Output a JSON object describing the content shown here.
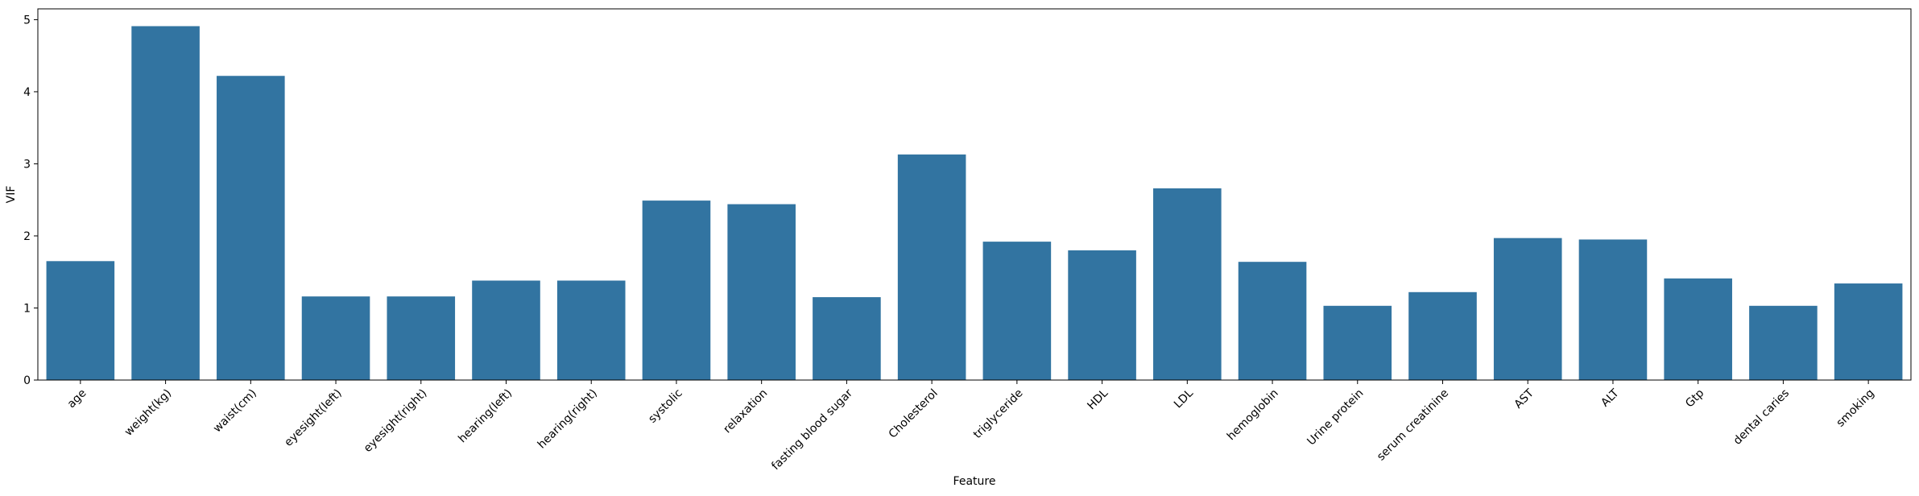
{
  "chart_data": {
    "type": "bar",
    "xlabel": "Feature",
    "ylabel": "VIF",
    "ylim": [
      0,
      5.15
    ],
    "yticks": [
      0,
      1,
      2,
      3,
      4,
      5
    ],
    "bar_color": "#3274a1",
    "grid": false,
    "categories": [
      "age",
      "weight(kg)",
      "waist(cm)",
      "eyesight(left)",
      "eyesight(right)",
      "hearing(left)",
      "hearing(right)",
      "systolic",
      "relaxation",
      "fasting blood sugar",
      "Cholesterol",
      "triglyceride",
      "HDL",
      "LDL",
      "hemoglobin",
      "Urine protein",
      "serum creatinine",
      "AST",
      "ALT",
      "Gtp",
      "dental caries",
      "smoking"
    ],
    "values": [
      1.65,
      4.91,
      4.22,
      1.16,
      1.16,
      1.38,
      1.38,
      2.49,
      2.44,
      1.15,
      3.13,
      1.92,
      1.8,
      2.66,
      1.64,
      1.03,
      1.22,
      1.97,
      1.95,
      1.41,
      1.03,
      1.34
    ]
  }
}
